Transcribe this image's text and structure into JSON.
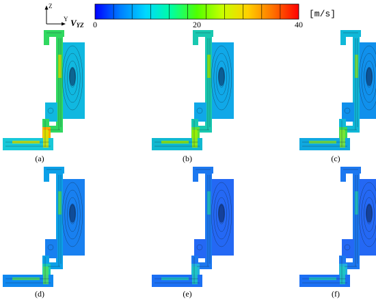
{
  "axes": {
    "z_label": "Z",
    "y_label": "Y",
    "velocity_symbol": "V",
    "velocity_subscript": "YZ"
  },
  "colorbar": {
    "unit": "[m/s]",
    "ticks": [
      "0",
      "20",
      "40"
    ],
    "tick_values": [
      0,
      20,
      40
    ],
    "colors": [
      "#0000ff",
      "#0080ff",
      "#00d8ff",
      "#00ffa0",
      "#50ff00",
      "#c8ff00",
      "#ffd000",
      "#ff7000",
      "#ff0000"
    ]
  },
  "panels": [
    {
      "id": "a",
      "label": "(a)",
      "state": "high"
    },
    {
      "id": "b",
      "label": "(b)",
      "state": "mid"
    },
    {
      "id": "c",
      "label": "(c)",
      "state": "mid-low"
    },
    {
      "id": "d",
      "label": "(d)",
      "state": "low"
    },
    {
      "id": "e",
      "label": "(e)",
      "state": "very-low"
    },
    {
      "id": "f",
      "label": "(f)",
      "state": "very-low"
    }
  ]
}
